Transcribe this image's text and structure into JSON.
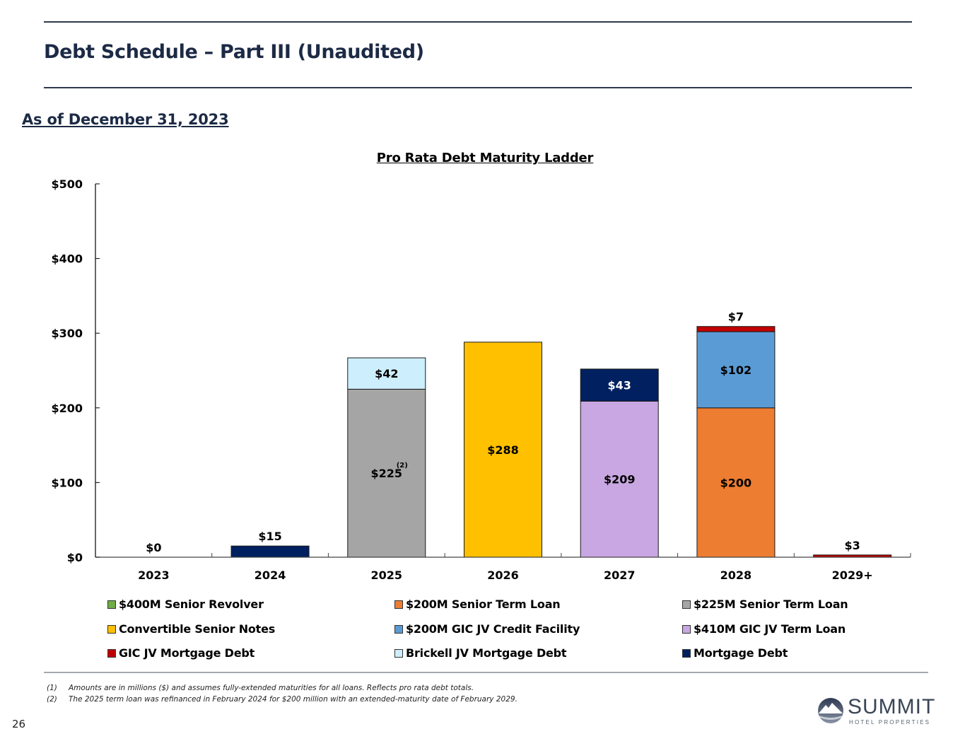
{
  "header": {
    "title": "Debt Schedule – Part III (Unaudited)",
    "as_of": "As of December 31, 2023"
  },
  "chart_data": {
    "type": "bar",
    "stacked": true,
    "title": "Pro Rata Debt Maturity Ladder",
    "xlabel": "",
    "ylabel": "",
    "ylim": [
      0,
      500
    ],
    "yticks": [
      0,
      100,
      200,
      300,
      400,
      500
    ],
    "ytick_labels": [
      "$0",
      "$100",
      "$200",
      "$300",
      "$400",
      "$500"
    ],
    "grid": false,
    "legend_position": "bottom",
    "categories": [
      "2023",
      "2024",
      "2025",
      "2026",
      "2027",
      "2028",
      "2029+"
    ],
    "series": [
      {
        "name": "$400M Senior Revolver",
        "color": "#70ad47",
        "values": [
          0,
          0,
          0,
          0,
          0,
          0,
          0
        ]
      },
      {
        "name": "$200M Senior Term Loan",
        "color": "#ed7d31",
        "values": [
          0,
          0,
          0,
          0,
          0,
          200,
          0
        ]
      },
      {
        "name": "$225M Senior Term Loan",
        "color": "#a5a5a5",
        "values": [
          0,
          0,
          225,
          0,
          0,
          0,
          0
        ]
      },
      {
        "name": "Convertible Senior Notes",
        "color": "#ffc000",
        "values": [
          0,
          0,
          0,
          288,
          0,
          0,
          0
        ]
      },
      {
        "name": "$200M GIC JV Credit Facility",
        "color": "#5b9bd5",
        "values": [
          0,
          0,
          0,
          0,
          0,
          102,
          0
        ]
      },
      {
        "name": "$410M GIC JV Term Loan",
        "color": "#c9a7e2",
        "values": [
          0,
          0,
          0,
          0,
          209,
          0,
          0
        ]
      },
      {
        "name": "GIC JV Mortgage Debt",
        "color": "#c00000",
        "values": [
          0,
          0,
          0,
          0,
          0,
          7,
          3
        ]
      },
      {
        "name": "Brickell JV Mortgage Debt",
        "color": "#cdeefc",
        "values": [
          0,
          0,
          42,
          0,
          0,
          0,
          0
        ]
      },
      {
        "name": "Mortgage Debt",
        "color": "#002060",
        "values": [
          0,
          15,
          0,
          0,
          43,
          0,
          0
        ]
      }
    ],
    "stack_order": [
      "$200M Senior Term Loan",
      "$225M Senior Term Loan",
      "Convertible Senior Notes",
      "$410M GIC JV Term Loan",
      "$200M GIC JV Credit Facility",
      "Brickell JV Mortgage Debt",
      "Mortgage Debt",
      "GIC JV Mortgage Debt",
      "$400M Senior Revolver"
    ],
    "data_labels": [
      {
        "category": "2023",
        "series": "total",
        "text": "$0",
        "position": "above"
      },
      {
        "category": "2024",
        "series": "Mortgage Debt",
        "text": "$15",
        "position": "above"
      },
      {
        "category": "2025",
        "series": "$225M Senior Term Loan",
        "text": "$225",
        "superscript": "(2)",
        "position": "inside"
      },
      {
        "category": "2025",
        "series": "Brickell JV Mortgage Debt",
        "text": "$42",
        "position": "inside"
      },
      {
        "category": "2026",
        "series": "Convertible Senior Notes",
        "text": "$288",
        "position": "inside"
      },
      {
        "category": "2027",
        "series": "$410M GIC JV Term Loan",
        "text": "$209",
        "position": "inside"
      },
      {
        "category": "2027",
        "series": "Mortgage Debt",
        "text": "$43",
        "position": "inside",
        "color": "#ffffff"
      },
      {
        "category": "2028",
        "series": "$200M Senior Term Loan",
        "text": "$200",
        "position": "inside"
      },
      {
        "category": "2028",
        "series": "$200M GIC JV Credit Facility",
        "text": "$102",
        "position": "inside"
      },
      {
        "category": "2028",
        "series": "GIC JV Mortgage Debt",
        "text": "$7",
        "position": "above"
      },
      {
        "category": "2029+",
        "series": "GIC JV Mortgage Debt",
        "text": "$3",
        "position": "above"
      }
    ]
  },
  "legend": [
    {
      "label": "$400M Senior Revolver",
      "color": "#70ad47"
    },
    {
      "label": "$200M Senior Term Loan",
      "color": "#ed7d31"
    },
    {
      "label": "$225M Senior Term Loan",
      "color": "#a5a5a5"
    },
    {
      "label": "Convertible Senior Notes",
      "color": "#ffc000"
    },
    {
      "label": "$200M GIC JV Credit Facility",
      "color": "#5b9bd5"
    },
    {
      "label": "$410M GIC JV Term Loan",
      "color": "#c9a7e2"
    },
    {
      "label": "GIC JV Mortgage Debt",
      "color": "#c00000"
    },
    {
      "label": "Brickell JV Mortgage Debt",
      "color": "#cdeefc"
    },
    {
      "label": "Mortgage Debt",
      "color": "#002060"
    }
  ],
  "footnotes": [
    {
      "num": "(1)",
      "text": "Amounts are in millions ($) and assumes fully-extended maturities for all loans. Reflects pro rata debt totals."
    },
    {
      "num": "(2)",
      "text": "The 2025 term loan was refinanced in February 2024 for $200 million with an extended-maturity date of February 2029."
    }
  ],
  "footer": {
    "page_number": "26",
    "logo_name": "SUMMIT",
    "logo_subtitle": "HOTEL PROPERTIES"
  }
}
